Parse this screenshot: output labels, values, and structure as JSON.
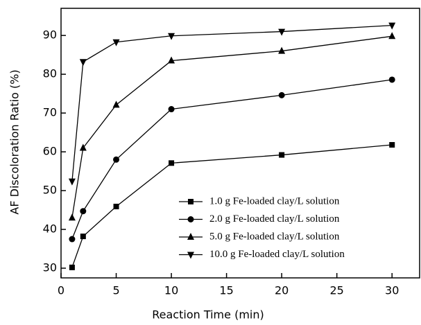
{
  "chart_data": {
    "type": "line",
    "xlabel": "Reaction Time (min)",
    "ylabel": "AF Discoloration Ratio (%)",
    "x": [
      1,
      2,
      5,
      10,
      20,
      30
    ],
    "series": [
      {
        "name": "1.0 g Fe-loaded clay/L solution",
        "color": "#000000",
        "marker": "square",
        "values": [
          30.2,
          38.2,
          45.9,
          57.1,
          59.2,
          61.8
        ]
      },
      {
        "name": "2.0 g Fe-loaded clay/L solution",
        "color": "#000000",
        "marker": "circle",
        "values": [
          37.5,
          44.7,
          58.0,
          71.0,
          74.6,
          78.6
        ]
      },
      {
        "name": "5.0 g Fe-loaded clay/L solution",
        "color": "#000000",
        "marker": "triangle-up",
        "values": [
          43.0,
          61.0,
          72.1,
          83.5,
          86.0,
          89.8
        ]
      },
      {
        "name": "10.0 g Fe-loaded clay/L solution",
        "color": "#000000",
        "marker": "triangle-down",
        "values": [
          52.4,
          83.2,
          88.3,
          89.9,
          91.0,
          92.6
        ]
      }
    ],
    "xlim": [
      0,
      32.5
    ],
    "xticks": [
      0,
      5,
      10,
      15,
      20,
      25,
      30
    ],
    "ylim": [
      27.5,
      97
    ],
    "yticks": [
      30,
      40,
      50,
      60,
      70,
      80,
      90
    ],
    "legend": "lower right"
  }
}
